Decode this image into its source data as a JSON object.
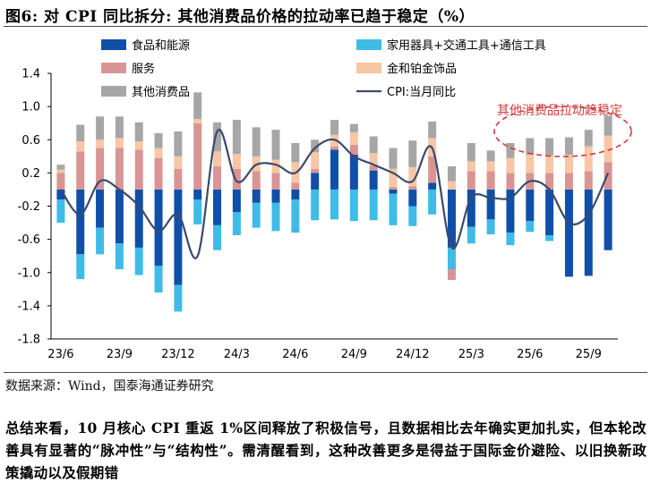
{
  "figure": {
    "title": "图6:  对 CPI 同比拆分:  其他消费品价格的拉动率已趋于稳定（%）",
    "source": "数据来源：Wind，国泰海通证券研究",
    "paragraph": "总结来看，10 月核心 CPI 重返 1%区间释放了积极信号，且数据相比去年确实更加扎实，但本轮改善具有显著的“脉冲性”与“结构性”。需清醒看到，这种改善更多是得益于国际金价避险、以旧换新政策撬动以及假期错"
  },
  "chart_data": {
    "type": "bar",
    "stacked": true,
    "categories": [
      "23/6",
      "23/7",
      "23/8",
      "23/9",
      "23/10",
      "23/11",
      "23/12",
      "24/1",
      "24/2",
      "24/3",
      "24/4",
      "24/5",
      "24/6",
      "24/7",
      "24/8",
      "24/9",
      "24/10",
      "24/11",
      "24/12",
      "25/1",
      "25/2",
      "25/3",
      "25/4",
      "25/5",
      "25/6",
      "25/7",
      "25/8",
      "25/9",
      "25/10"
    ],
    "x_tick_labels": [
      "23/6",
      "23/9",
      "23/12",
      "24/3",
      "24/6",
      "24/9",
      "24/12",
      "25/3",
      "25/6",
      "25/9"
    ],
    "y_ticks": [
      "1.4",
      "1.0",
      "0.6",
      "0.2",
      "-0.2",
      "-0.6",
      "-1.0",
      "-1.4",
      "-1.8"
    ],
    "ylim": [
      -1.8,
      1.4
    ],
    "grid": false,
    "series": [
      {
        "name": "食品和能源",
        "color": "#0f4fa8",
        "values": [
          -0.12,
          -0.78,
          -0.46,
          -0.65,
          -0.7,
          -0.92,
          -1.15,
          -0.12,
          -0.43,
          -0.27,
          -0.16,
          -0.16,
          -0.12,
          0.2,
          0.48,
          0.42,
          0.23,
          -0.05,
          -0.2,
          0.08,
          -0.7,
          -0.45,
          -0.36,
          -0.52,
          -0.38,
          -0.55,
          -1.05,
          -1.04,
          -0.73
        ]
      },
      {
        "name": "家用器具+交通工具+通信工具",
        "color": "#3fbbe8",
        "values": [
          -0.28,
          -0.3,
          -0.32,
          -0.31,
          -0.33,
          -0.32,
          -0.32,
          -0.3,
          -0.3,
          -0.28,
          -0.3,
          -0.34,
          -0.4,
          -0.37,
          -0.36,
          -0.38,
          -0.37,
          -0.38,
          -0.24,
          -0.3,
          -0.26,
          -0.2,
          -0.18,
          -0.15,
          -0.13,
          -0.07,
          0,
          0,
          0
        ]
      },
      {
        "name": "服务",
        "color": "#d99494",
        "values": [
          0.2,
          0.46,
          0.5,
          0.5,
          0.48,
          0.38,
          0.25,
          0.8,
          0.28,
          0.25,
          0.22,
          0.2,
          0.08,
          0.05,
          0.04,
          0.12,
          0.06,
          0.03,
          0.04,
          0.32,
          -0.13,
          0.22,
          0.22,
          0.2,
          0.2,
          0.2,
          0.2,
          0.22,
          0.33
        ]
      },
      {
        "name": "金和铂金饰品",
        "color": "#f6c6a6",
        "values": [
          0.04,
          0.12,
          0.1,
          0.12,
          0.1,
          0.12,
          0.15,
          0.05,
          0.18,
          0.18,
          0.18,
          0.16,
          0.25,
          0.2,
          0.14,
          0.15,
          0.15,
          0.22,
          0.23,
          0.22,
          0.1,
          0.12,
          0.12,
          0.18,
          0.22,
          0.21,
          0.22,
          0.3,
          0.32
        ]
      },
      {
        "name": "其他消费品",
        "color": "#a6a6a6",
        "values": [
          0.06,
          0.2,
          0.28,
          0.26,
          0.23,
          0.18,
          0.3,
          0.32,
          0.35,
          0.41,
          0.35,
          0.36,
          0.23,
          0.15,
          0.18,
          0.1,
          0.2,
          0.25,
          0.32,
          0.2,
          0.18,
          0.22,
          0.13,
          0.18,
          0.2,
          0.21,
          0.21,
          0.2,
          0.24
        ]
      },
      {
        "name": "CPI:当月同比",
        "color": "#3b4a6b",
        "type": "line",
        "values": [
          0.0,
          -0.3,
          0.1,
          0.0,
          -0.2,
          -0.5,
          -0.3,
          -0.8,
          0.7,
          0.1,
          0.3,
          0.3,
          0.2,
          0.5,
          0.6,
          0.4,
          0.3,
          0.2,
          0.1,
          0.5,
          -0.7,
          -0.1,
          -0.1,
          -0.1,
          0.1,
          0.0,
          -0.4,
          -0.3,
          0.2
        ]
      }
    ],
    "legend": "top, two columns",
    "annotation": {
      "text": "其他消费品拉动趋稳定",
      "color": "#d23a3a",
      "style": "dashed ellipse around 25/5–25/10"
    }
  }
}
